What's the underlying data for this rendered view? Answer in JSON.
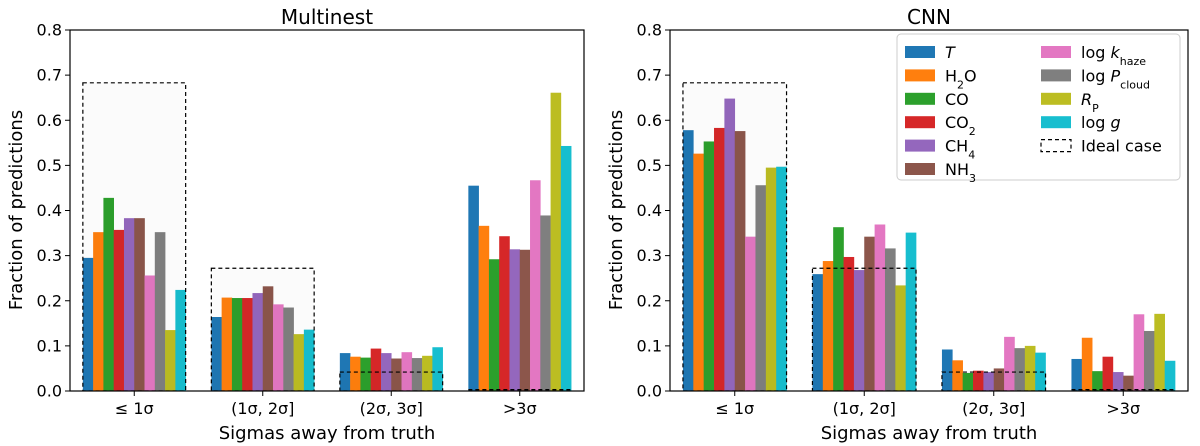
{
  "chart_data": [
    {
      "type": "bar",
      "title": "Multinest",
      "xlabel": "Sigmas away from truth",
      "ylabel": "Fraction of predictions",
      "ylim": [
        0,
        0.8
      ],
      "yticks": [
        "0.0",
        "0.1",
        "0.2",
        "0.3",
        "0.4",
        "0.5",
        "0.6",
        "0.7",
        "0.8"
      ],
      "categories": [
        "≤ 1σ",
        "(1σ, 2σ]",
        "(2σ, 3σ]",
        ">3σ"
      ],
      "ideal_case": [
        0.683,
        0.272,
        0.042,
        0.003
      ],
      "series": [
        {
          "name": "T",
          "values": [
            0.295,
            0.164,
            0.084,
            0.455
          ]
        },
        {
          "name": "H2O",
          "values": [
            0.352,
            0.207,
            0.076,
            0.366
          ]
        },
        {
          "name": "CO",
          "values": [
            0.428,
            0.206,
            0.074,
            0.292
          ]
        },
        {
          "name": "CO2",
          "values": [
            0.357,
            0.206,
            0.094,
            0.343
          ]
        },
        {
          "name": "CH4",
          "values": [
            0.383,
            0.217,
            0.084,
            0.314
          ]
        },
        {
          "name": "NH3",
          "values": [
            0.383,
            0.232,
            0.072,
            0.313
          ]
        },
        {
          "name": "log k_haze",
          "values": [
            0.256,
            0.192,
            0.086,
            0.467
          ]
        },
        {
          "name": "log P_cloud",
          "values": [
            0.352,
            0.185,
            0.073,
            0.389
          ]
        },
        {
          "name": "R_P",
          "values": [
            0.135,
            0.126,
            0.078,
            0.661
          ]
        },
        {
          "name": "log g",
          "values": [
            0.224,
            0.136,
            0.097,
            0.543
          ]
        }
      ]
    },
    {
      "type": "bar",
      "title": "CNN",
      "xlabel": "Sigmas away from truth",
      "ylabel": "Fraction of predictions",
      "ylim": [
        0,
        0.8
      ],
      "yticks": [
        "0.0",
        "0.1",
        "0.2",
        "0.3",
        "0.4",
        "0.5",
        "0.6",
        "0.7",
        "0.8"
      ],
      "categories": [
        "≤ 1σ",
        "(1σ, 2σ]",
        "(2σ, 3σ]",
        ">3σ"
      ],
      "ideal_case": [
        0.683,
        0.272,
        0.042,
        0.003
      ],
      "series": [
        {
          "name": "T",
          "values": [
            0.578,
            0.259,
            0.092,
            0.071
          ]
        },
        {
          "name": "H2O",
          "values": [
            0.526,
            0.288,
            0.068,
            0.118
          ]
        },
        {
          "name": "CO",
          "values": [
            0.553,
            0.363,
            0.04,
            0.044
          ]
        },
        {
          "name": "CO2",
          "values": [
            0.583,
            0.297,
            0.045,
            0.076
          ]
        },
        {
          "name": "CH4",
          "values": [
            0.648,
            0.268,
            0.042,
            0.042
          ]
        },
        {
          "name": "NH3",
          "values": [
            0.576,
            0.342,
            0.05,
            0.034
          ]
        },
        {
          "name": "log k_haze",
          "values": [
            0.342,
            0.369,
            0.12,
            0.17
          ]
        },
        {
          "name": "log P_cloud",
          "values": [
            0.456,
            0.316,
            0.095,
            0.133
          ]
        },
        {
          "name": "R_P",
          "values": [
            0.495,
            0.234,
            0.1,
            0.171
          ]
        },
        {
          "name": "log g",
          "values": [
            0.497,
            0.351,
            0.085,
            0.067
          ]
        }
      ]
    }
  ],
  "legend": {
    "placement": "top-right",
    "entries": [
      {
        "label": "T",
        "color": "#1f77b4"
      },
      {
        "label": "H2O",
        "color": "#ff7f0e"
      },
      {
        "label": "CO",
        "color": "#2ca02c"
      },
      {
        "label": "CO2",
        "color": "#d62728"
      },
      {
        "label": "CH4",
        "color": "#9467bd"
      },
      {
        "label": "NH3",
        "color": "#8c564b"
      },
      {
        "label": "log k_haze",
        "color": "#e377c2"
      },
      {
        "label": "log P_cloud",
        "color": "#7f7f7f"
      },
      {
        "label": "R_P",
        "color": "#bcbd22"
      },
      {
        "label": "log g",
        "color": "#17becf"
      }
    ],
    "ideal_label": "Ideal case"
  }
}
